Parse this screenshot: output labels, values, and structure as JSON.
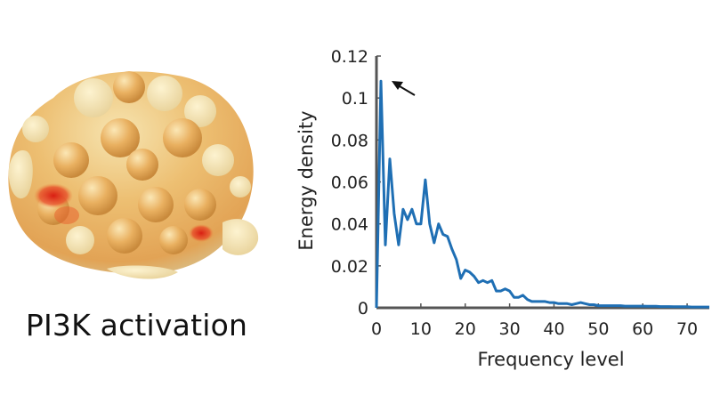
{
  "figure": {
    "caption": "PI3K activation",
    "protein_image": "protein-surface-rendering"
  },
  "colors": {
    "line": "#1f6fb4",
    "axis": "#555555",
    "surface_light": "#f2dca0",
    "surface_mid": "#e8ae5a",
    "hotspot": "#d62a1a"
  },
  "chart_data": {
    "type": "line",
    "title": "",
    "xlabel": "Frequency level",
    "ylabel": "Energy density",
    "xlim": [
      0,
      75
    ],
    "ylim": [
      0,
      0.12
    ],
    "xticks": [
      0,
      10,
      20,
      30,
      40,
      50,
      60,
      70
    ],
    "xtick_labels": [
      "0",
      "10",
      "20",
      "30",
      "40",
      "50",
      "60",
      "70"
    ],
    "yticks": [
      0,
      0.02,
      0.04,
      0.06,
      0.08,
      0.1,
      0.12
    ],
    "ytick_labels": [
      "0",
      "0.02",
      "0.04",
      "0.06",
      "0.08",
      "0.1",
      "0.12"
    ],
    "annotation": "arrow pointing to peak",
    "series": [
      {
        "name": "PI3K activation",
        "x": [
          0,
          1,
          2,
          3,
          4,
          5,
          6,
          7,
          8,
          9,
          10,
          11,
          12,
          13,
          14,
          15,
          16,
          17,
          18,
          19,
          20,
          21,
          22,
          23,
          24,
          25,
          26,
          27,
          28,
          29,
          30,
          31,
          32,
          33,
          34,
          35,
          36,
          37,
          38,
          39,
          40,
          41,
          42,
          43,
          44,
          45,
          46,
          47,
          48,
          49,
          50,
          51,
          52,
          53,
          54,
          55,
          56,
          57,
          58,
          59,
          60,
          61,
          62,
          63,
          64,
          65,
          66,
          67,
          68,
          69,
          70,
          71,
          72,
          73,
          74,
          75
        ],
        "values": [
          0,
          0.108,
          0.03,
          0.071,
          0.045,
          0.03,
          0.047,
          0.042,
          0.047,
          0.04,
          0.04,
          0.061,
          0.04,
          0.031,
          0.04,
          0.035,
          0.034,
          0.028,
          0.023,
          0.014,
          0.018,
          0.017,
          0.015,
          0.012,
          0.013,
          0.012,
          0.013,
          0.008,
          0.008,
          0.009,
          0.008,
          0.005,
          0.005,
          0.006,
          0.004,
          0.003,
          0.003,
          0.003,
          0.003,
          0.0025,
          0.0025,
          0.002,
          0.002,
          0.002,
          0.0015,
          0.002,
          0.0025,
          0.002,
          0.0015,
          0.0015,
          0.001,
          0.001,
          0.001,
          0.001,
          0.001,
          0.001,
          0.0008,
          0.0008,
          0.0008,
          0.0008,
          0.0008,
          0.0007,
          0.0007,
          0.0007,
          0.0006,
          0.0006,
          0.0006,
          0.0005,
          0.0005,
          0.0005,
          0.0005,
          0.0004,
          0.0004,
          0.0004,
          0.0004,
          0.0004
        ]
      }
    ]
  }
}
